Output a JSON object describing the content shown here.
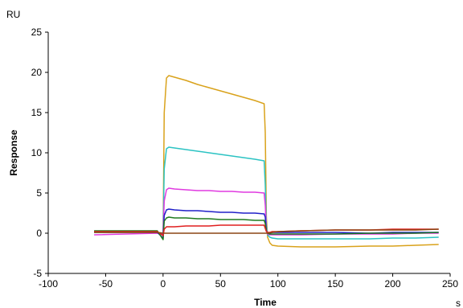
{
  "chart_data": {
    "type": "line",
    "title": "",
    "xlabel": "Time",
    "ylabel": "Response",
    "x_unit": "s",
    "y_unit": "RU",
    "xlim": [
      -100,
      250
    ],
    "ylim": [
      -5,
      25
    ],
    "x_ticks": [
      -100,
      -50,
      0,
      50,
      100,
      150,
      200,
      250
    ],
    "y_ticks": [
      -5,
      0,
      5,
      10,
      15,
      20,
      25
    ],
    "grid": false,
    "legend": "none",
    "series": [
      {
        "color": "#D9A21B",
        "x": [
          -60,
          -5,
          0,
          1,
          3,
          5,
          10,
          20,
          30,
          40,
          50,
          60,
          70,
          80,
          88,
          89,
          90,
          91,
          93,
          95,
          100,
          120,
          150,
          180,
          200,
          220,
          240
        ],
        "y": [
          0.1,
          0.1,
          0.0,
          15.0,
          19.3,
          19.6,
          19.4,
          19.0,
          18.5,
          18.1,
          17.7,
          17.3,
          16.9,
          16.5,
          16.1,
          12.5,
          2.0,
          -0.5,
          -1.2,
          -1.5,
          -1.6,
          -1.7,
          -1.7,
          -1.6,
          -1.6,
          -1.5,
          -1.4
        ]
      },
      {
        "color": "#2CC3C3",
        "x": [
          -60,
          -5,
          0,
          1,
          3,
          5,
          10,
          20,
          30,
          40,
          50,
          60,
          70,
          80,
          88,
          89,
          90,
          91,
          93,
          95,
          100,
          120,
          150,
          180,
          200,
          220,
          240
        ],
        "y": [
          0.1,
          0.1,
          0.0,
          8.0,
          10.5,
          10.7,
          10.6,
          10.4,
          10.2,
          10.0,
          9.8,
          9.6,
          9.4,
          9.2,
          9.0,
          6.0,
          1.0,
          -0.2,
          -0.5,
          -0.6,
          -0.7,
          -0.7,
          -0.7,
          -0.7,
          -0.6,
          -0.6,
          -0.5
        ]
      },
      {
        "color": "#E03AE0",
        "x": [
          -60,
          -5,
          0,
          1,
          3,
          5,
          10,
          20,
          30,
          40,
          50,
          60,
          70,
          80,
          88,
          89,
          90,
          91,
          93,
          95,
          100,
          120,
          150,
          180,
          200,
          220,
          240
        ],
        "y": [
          -0.2,
          0.0,
          -0.1,
          4.0,
          5.4,
          5.6,
          5.5,
          5.4,
          5.3,
          5.3,
          5.2,
          5.2,
          5.1,
          5.1,
          5.0,
          3.5,
          0.5,
          -0.1,
          -0.2,
          -0.2,
          -0.2,
          -0.2,
          -0.1,
          -0.1,
          -0.1,
          0.0,
          0.0
        ]
      },
      {
        "color": "#2020C8",
        "x": [
          -60,
          -5,
          0,
          1,
          3,
          5,
          10,
          20,
          30,
          40,
          50,
          60,
          70,
          80,
          88,
          89,
          90,
          91,
          93,
          95,
          100,
          120,
          150,
          180,
          200,
          220,
          240
        ],
        "y": [
          0.2,
          0.1,
          -0.6,
          2.2,
          2.9,
          3.0,
          2.9,
          2.8,
          2.8,
          2.7,
          2.6,
          2.6,
          2.5,
          2.5,
          2.4,
          2.0,
          0.3,
          0.0,
          0.0,
          0.1,
          0.1,
          0.1,
          0.1,
          0.0,
          0.1,
          0.1,
          0.1
        ]
      },
      {
        "color": "#1E7A1E",
        "x": [
          -60,
          -5,
          0,
          1,
          3,
          5,
          10,
          20,
          30,
          40,
          50,
          60,
          70,
          80,
          88,
          89,
          90,
          91,
          93,
          95,
          100,
          120,
          150,
          180,
          200,
          220,
          240
        ],
        "y": [
          0.3,
          0.3,
          -0.8,
          1.5,
          1.9,
          2.0,
          1.9,
          1.9,
          1.8,
          1.8,
          1.7,
          1.7,
          1.7,
          1.6,
          1.6,
          1.2,
          0.3,
          0.0,
          -0.1,
          -0.1,
          -0.1,
          -0.1,
          -0.1,
          0.0,
          0.0,
          0.0,
          0.1
        ]
      },
      {
        "color": "#E01F1F",
        "x": [
          -60,
          -5,
          0,
          1,
          3,
          5,
          10,
          20,
          30,
          40,
          50,
          60,
          70,
          80,
          88,
          89,
          90,
          91,
          93,
          95,
          100,
          120,
          150,
          180,
          200,
          220,
          240
        ],
        "y": [
          0.2,
          0.2,
          -0.3,
          0.5,
          0.8,
          0.8,
          0.8,
          0.9,
          0.9,
          0.9,
          1.0,
          1.0,
          1.0,
          1.0,
          1.0,
          0.6,
          0.2,
          0.1,
          0.1,
          0.2,
          0.2,
          0.3,
          0.4,
          0.4,
          0.5,
          0.5,
          0.5
        ]
      },
      {
        "color": "#8B4513",
        "x": [
          -60,
          -5,
          0,
          90,
          91,
          95,
          100,
          120,
          150,
          180,
          200,
          220,
          240
        ],
        "y": [
          0.1,
          0.1,
          0.0,
          0.0,
          0.0,
          0.1,
          0.2,
          0.3,
          0.4,
          0.4,
          0.4,
          0.4,
          0.5
        ]
      }
    ]
  }
}
